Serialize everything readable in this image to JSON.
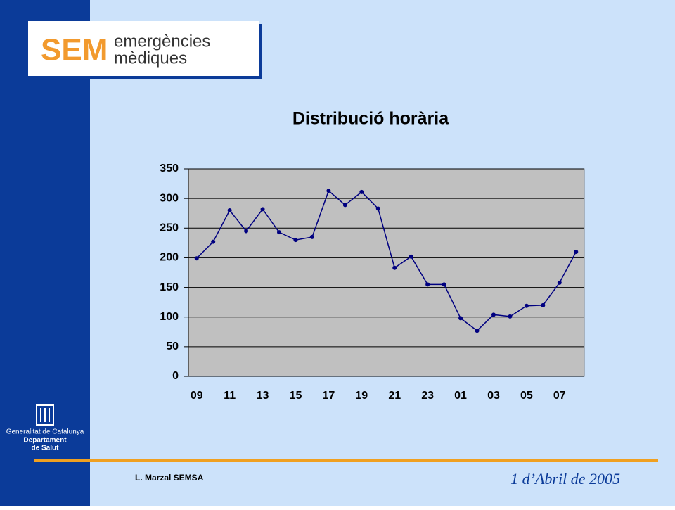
{
  "slide": {
    "logo_mark": "SEM",
    "logo_line1": "emergències",
    "logo_line2": "mèdiques",
    "org_line1": "Generalitat de Catalunya",
    "org_line2": "Departament",
    "org_line3": "de Salut",
    "author": "L. Marzal  SEMSA",
    "date": "1 d’Abril  de 2005"
  },
  "chart_data": {
    "type": "line",
    "title": "Distribució horària",
    "categories": [
      "09",
      null,
      "11",
      null,
      "13",
      null,
      "15",
      null,
      "17",
      null,
      "19",
      null,
      "21",
      null,
      "23",
      null,
      "01",
      null,
      "03",
      null,
      "05",
      null,
      "07",
      null
    ],
    "series": [
      {
        "name": "Distribució horària",
        "color": "#000080",
        "values": [
          199,
          227,
          280,
          245,
          282,
          243,
          230,
          235,
          313,
          289,
          311,
          283,
          183,
          202,
          155,
          155,
          98,
          77,
          104,
          101,
          119,
          120,
          158,
          210
        ]
      }
    ],
    "ylim": [
      0,
      350
    ],
    "yticks": [
      0,
      50,
      100,
      150,
      200,
      250,
      300,
      350
    ],
    "grid": true,
    "plot_background": "#c0c0c0"
  }
}
